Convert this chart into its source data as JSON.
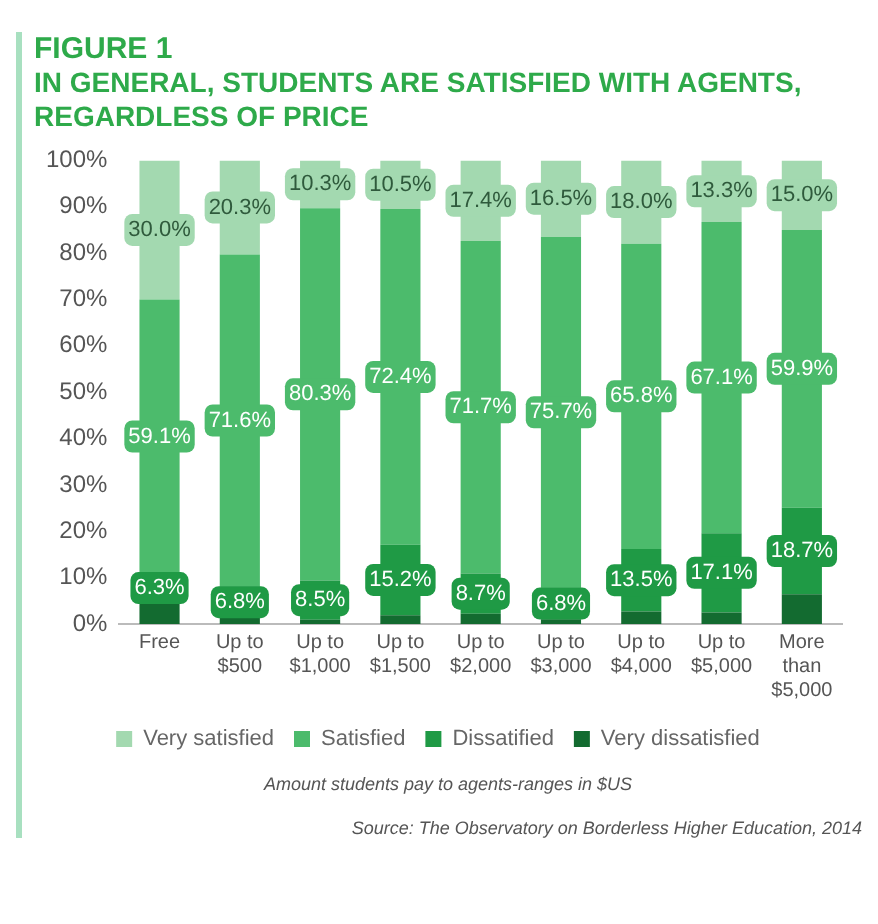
{
  "chart_data": {
    "type": "bar",
    "stacked": true,
    "title": "FIGURE 1",
    "subtitle": "IN GENERAL, STUDENTS ARE SATISFIED WITH AGENTS, REGARDLESS OF PRICE",
    "xlabel": "Amount students pay to agents-ranges in $US",
    "annotations": [
      "Source: The Observatory on Borderless Higher Education, 2014"
    ],
    "categories": [
      "Free",
      "Up to\n$500",
      "Up to\n$1,000",
      "Up to\n$1,500",
      "Up to\n$2,000",
      "Up to\n$3,000",
      "Up to\n$4,000",
      "Up to\n$5,000",
      "More\nthan\n$5,000"
    ],
    "series": [
      {
        "name": "Very dissatisfied",
        "color": "#136b30",
        "values": [
          4.6,
          1.3,
          0.9,
          1.9,
          2.2,
          1.0,
          2.7,
          2.5,
          6.4
        ]
      },
      {
        "name": "Dissatified",
        "color": "#1f9a45",
        "values": [
          6.3,
          6.8,
          8.5,
          15.2,
          8.7,
          6.8,
          13.5,
          17.1,
          18.7
        ],
        "value_labels": [
          "6.3%",
          "6.8%",
          "8.5%",
          "15.2%",
          "8.7%",
          "6.8%",
          "13.5%",
          "17.1%",
          "18.7%"
        ]
      },
      {
        "name": "Satisfied",
        "color": "#4cbb6c",
        "values": [
          59.1,
          71.6,
          80.3,
          72.4,
          71.7,
          75.7,
          65.8,
          67.1,
          59.9
        ],
        "value_labels": [
          "59.1%",
          "71.6%",
          "80.3%",
          "72.4%",
          "71.7%",
          "75.7%",
          "65.8%",
          "67.1%",
          "59.9%"
        ]
      },
      {
        "name": "Very satisfied",
        "color": "#a3d9b0",
        "values": [
          30.0,
          20.3,
          10.3,
          10.5,
          17.4,
          16.5,
          18.0,
          13.3,
          15.0
        ],
        "value_labels": [
          "30.0%",
          "20.3%",
          "10.3%",
          "10.5%",
          "17.4%",
          "16.5%",
          "18.0%",
          "13.3%",
          "15.0%"
        ]
      }
    ],
    "ylim": [
      0,
      100
    ],
    "yticks": [
      {
        "value": 0,
        "label": "0%"
      },
      {
        "value": 10,
        "label": "10%"
      },
      {
        "value": 20,
        "label": "20%"
      },
      {
        "value": 30,
        "label": "30%"
      },
      {
        "value": 40,
        "label": "40%"
      },
      {
        "value": 50,
        "label": "50%"
      },
      {
        "value": 60,
        "label": "60%"
      },
      {
        "value": 70,
        "label": "70%"
      },
      {
        "value": 80,
        "label": "80%"
      },
      {
        "value": 90,
        "label": "90%"
      },
      {
        "value": 100,
        "label": "100%"
      }
    ],
    "grid": false,
    "legend": "bottom"
  }
}
